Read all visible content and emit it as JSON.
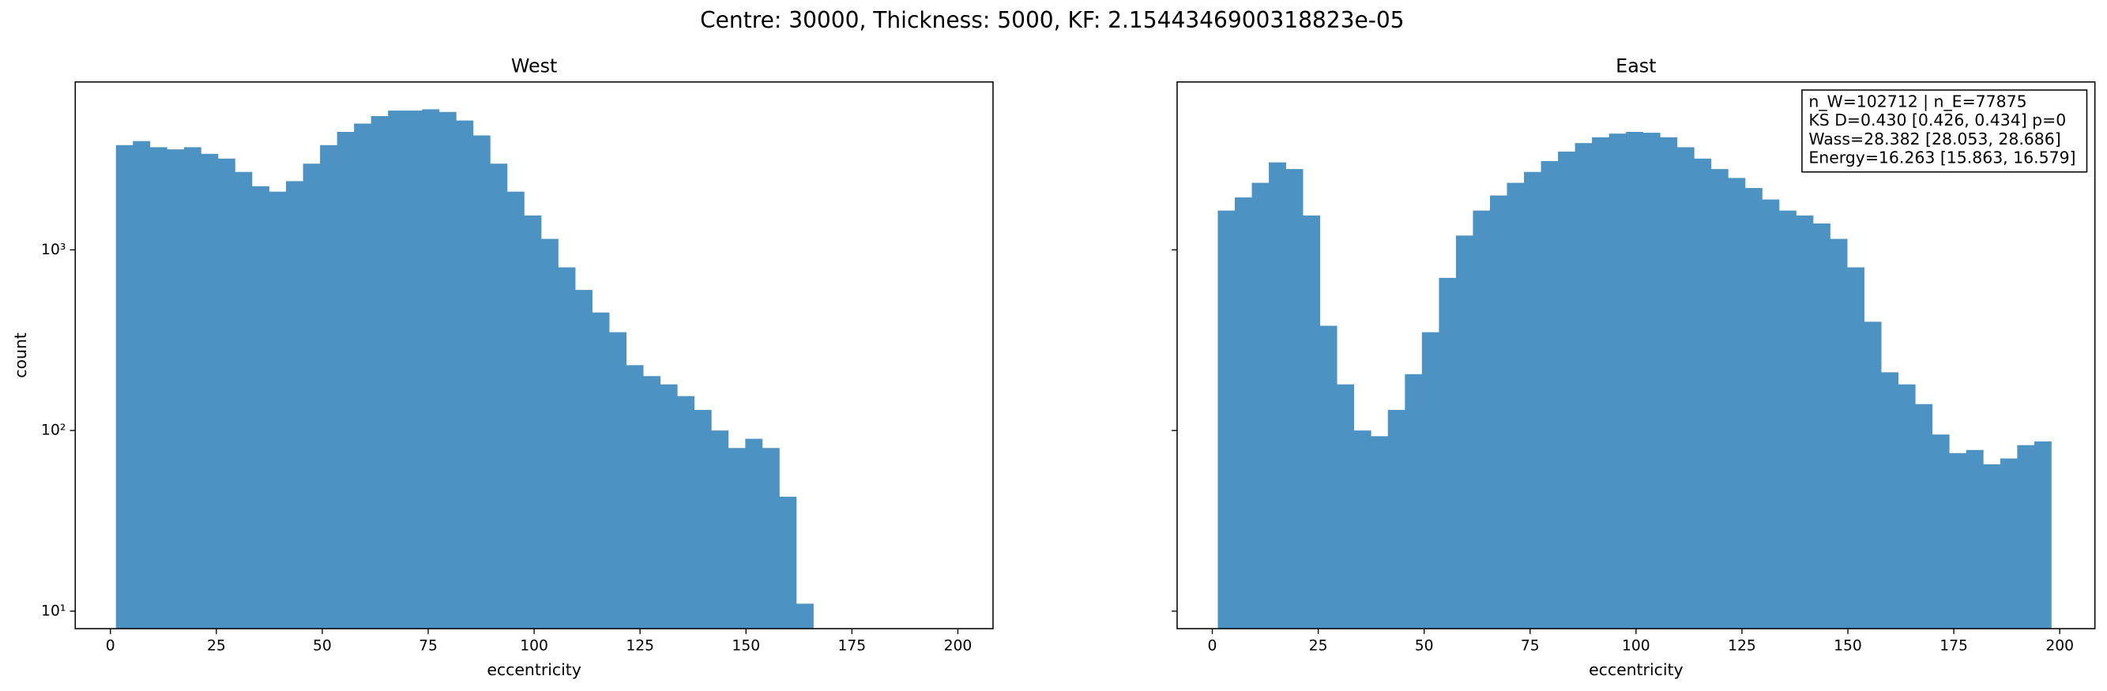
{
  "title": "Centre: 30000, Thickness: 5000, KF: 2.1544346900318823e-05",
  "chart_data": [
    {
      "type": "histogram",
      "title": "West",
      "x_label": "eccentricity",
      "y_label": "count",
      "color": "#4c92c3",
      "yscale": "log",
      "show_ytick_labels": true,
      "xlim": [
        -8.3,
        208.3
      ],
      "ylim": [
        8,
        8500
      ],
      "xticks": [
        0,
        25,
        50,
        75,
        100,
        125,
        150,
        175,
        200
      ],
      "yticks": [
        {
          "value": 10,
          "label": "10¹"
        },
        {
          "value": 100,
          "label": "10²"
        },
        {
          "value": 1000,
          "label": "10³"
        }
      ],
      "bins": [
        1.3,
        5.31,
        9.33,
        13.34,
        17.36,
        21.37,
        25.39,
        29.4,
        33.41,
        37.43,
        41.44,
        45.46,
        49.47,
        53.49,
        57.5,
        61.51,
        65.53,
        69.54,
        73.56,
        77.57,
        81.59,
        85.6,
        89.61,
        93.63,
        97.64,
        101.66,
        105.67,
        109.69,
        113.7,
        117.71,
        121.73,
        125.74,
        129.76,
        133.77,
        137.79,
        141.8,
        145.81,
        149.83,
        153.84,
        157.86,
        161.87,
        165.89
      ],
      "values": [
        3800,
        4000,
        3700,
        3600,
        3700,
        3400,
        3200,
        2700,
        2250,
        2100,
        2400,
        3000,
        3800,
        4500,
        5000,
        5500,
        5900,
        5900,
        6000,
        5800,
        5200,
        4300,
        3000,
        2100,
        1550,
        1150,
        800,
        600,
        450,
        350,
        230,
        200,
        180,
        155,
        130,
        100,
        80,
        90,
        80,
        43,
        11
      ]
    },
    {
      "type": "histogram",
      "title": "East",
      "x_label": "eccentricity",
      "color": "#4c92c3",
      "yscale": "log",
      "show_ytick_labels": false,
      "xlim": [
        -8.3,
        208.3
      ],
      "ylim": [
        8,
        8500
      ],
      "xticks": [
        0,
        25,
        50,
        75,
        100,
        125,
        150,
        175,
        200
      ],
      "yticks": [
        10,
        100,
        1000
      ],
      "annotation": [
        "n_W=102712 | n_E=77875",
        "KS D=0.430 [0.426, 0.434]  p=0",
        "Wass=28.382 [28.053, 28.686]",
        "Energy=16.263 [15.863, 16.579]"
      ],
      "bins": [
        1.3,
        5.31,
        9.33,
        13.34,
        17.36,
        21.37,
        25.39,
        29.4,
        33.41,
        37.43,
        41.44,
        45.46,
        49.47,
        53.49,
        57.5,
        61.51,
        65.53,
        69.54,
        73.56,
        77.57,
        81.59,
        85.6,
        89.61,
        93.63,
        97.64,
        101.66,
        105.67,
        109.69,
        113.7,
        117.71,
        121.73,
        125.74,
        129.76,
        133.77,
        137.79,
        141.8,
        145.81,
        149.83,
        153.84,
        157.86,
        161.87,
        165.89,
        169.9,
        173.91,
        177.93,
        181.94,
        185.96,
        189.97,
        193.99,
        198.0
      ],
      "values": [
        1650,
        1950,
        2350,
        3050,
        2800,
        1550,
        380,
        180,
        100,
        93,
        130,
        205,
        350,
        700,
        1200,
        1650,
        2000,
        2350,
        2700,
        3100,
        3500,
        3900,
        4200,
        4400,
        4500,
        4450,
        4200,
        3700,
        3200,
        2800,
        2500,
        2200,
        1900,
        1650,
        1550,
        1400,
        1150,
        800,
        400,
        210,
        180,
        140,
        95,
        75,
        78,
        65,
        70,
        83,
        87
      ]
    }
  ]
}
